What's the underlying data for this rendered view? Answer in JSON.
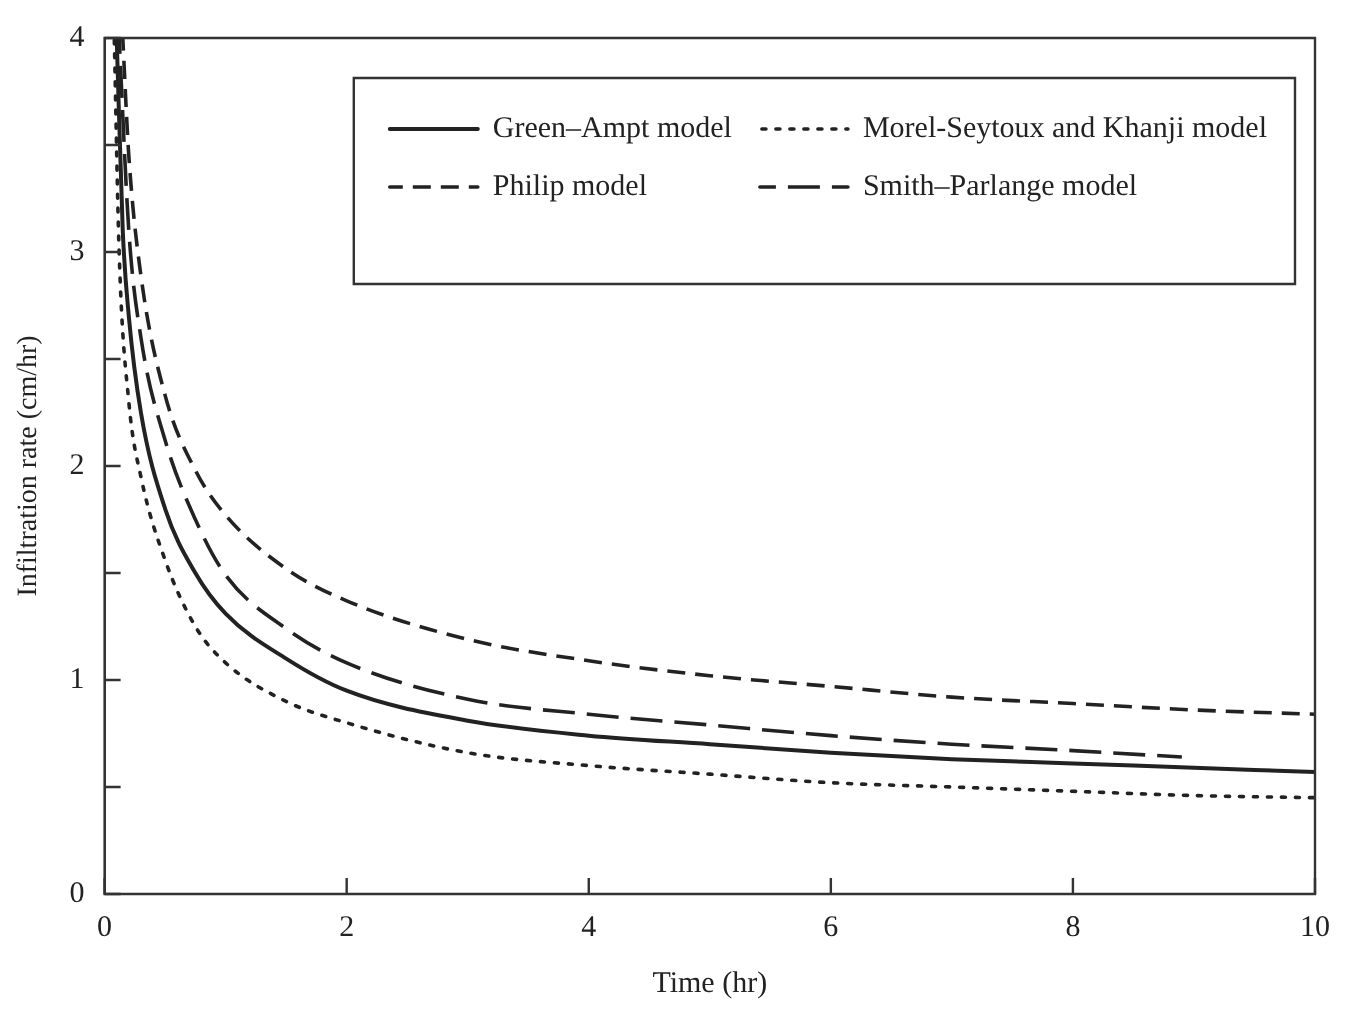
{
  "chart_data": {
    "type": "line",
    "xlabel": "Time (hr)",
    "ylabel": "Infiltration rate (cm/hr)",
    "xlim": [
      0,
      10
    ],
    "xticks": [
      0,
      2,
      4,
      6,
      8,
      10
    ],
    "ylim": [
      0,
      4
    ],
    "yticks": [
      0,
      {
        "value": 0.5,
        "label": null
      },
      1,
      {
        "value": 1.5,
        "label": null
      },
      2,
      {
        "value": 2.5,
        "label": null
      },
      3,
      {
        "value": 3.5,
        "label": null
      },
      4
    ],
    "grid": false,
    "legend": "top right",
    "marker": "none",
    "series": [
      {
        "name": "Green–Ampt model",
        "color": "#222222",
        "line_style": "solid",
        "x": [
          0.1,
          0.15,
          0.2,
          0.3,
          0.5,
          0.75,
          1,
          1.5,
          2,
          3,
          4,
          5,
          6,
          7,
          8,
          9,
          10
        ],
        "values": [
          4,
          3.1,
          2.7,
          2.25,
          1.8,
          1.5,
          1.31,
          1.1,
          0.95,
          0.81,
          0.74,
          0.7,
          0.66,
          0.63,
          0.61,
          0.59,
          0.57
        ]
      },
      {
        "name": "Philip model",
        "color": "#222222",
        "line_style": "dashed",
        "x": [
          0.15,
          0.2,
          0.3,
          0.5,
          0.75,
          1,
          1.5,
          2,
          3,
          4,
          5,
          6,
          7,
          8,
          9,
          10
        ],
        "values": [
          4,
          3.45,
          2.89,
          2.33,
          1.98,
          1.77,
          1.52,
          1.37,
          1.19,
          1.09,
          1.02,
          0.97,
          0.92,
          0.89,
          0.86,
          0.84
        ]
      },
      {
        "name": "Morel-Seytoux and Khanji model",
        "color": "#222222",
        "line_style": "dotted",
        "x": [
          0.08,
          0.12,
          0.2,
          0.3,
          0.5,
          0.75,
          1,
          1.5,
          2,
          3,
          4,
          5,
          6,
          7,
          8,
          9,
          10
        ],
        "values": [
          4,
          3.0,
          2.3,
          1.95,
          1.56,
          1.25,
          1.08,
          0.9,
          0.8,
          0.66,
          0.6,
          0.56,
          0.52,
          0.5,
          0.48,
          0.46,
          0.45
        ]
      },
      {
        "name": "Smith–Parlange model",
        "color": "#222222",
        "line_style": "longdash",
        "x": [
          0.12,
          0.2,
          0.3,
          0.5,
          0.75,
          1,
          1.5,
          2,
          3,
          4,
          5,
          6,
          7,
          8,
          8.9
        ],
        "values": [
          4,
          3.1,
          2.6,
          2.12,
          1.75,
          1.49,
          1.24,
          1.08,
          0.91,
          0.84,
          0.79,
          0.74,
          0.7,
          0.67,
          0.64
        ]
      }
    ]
  }
}
